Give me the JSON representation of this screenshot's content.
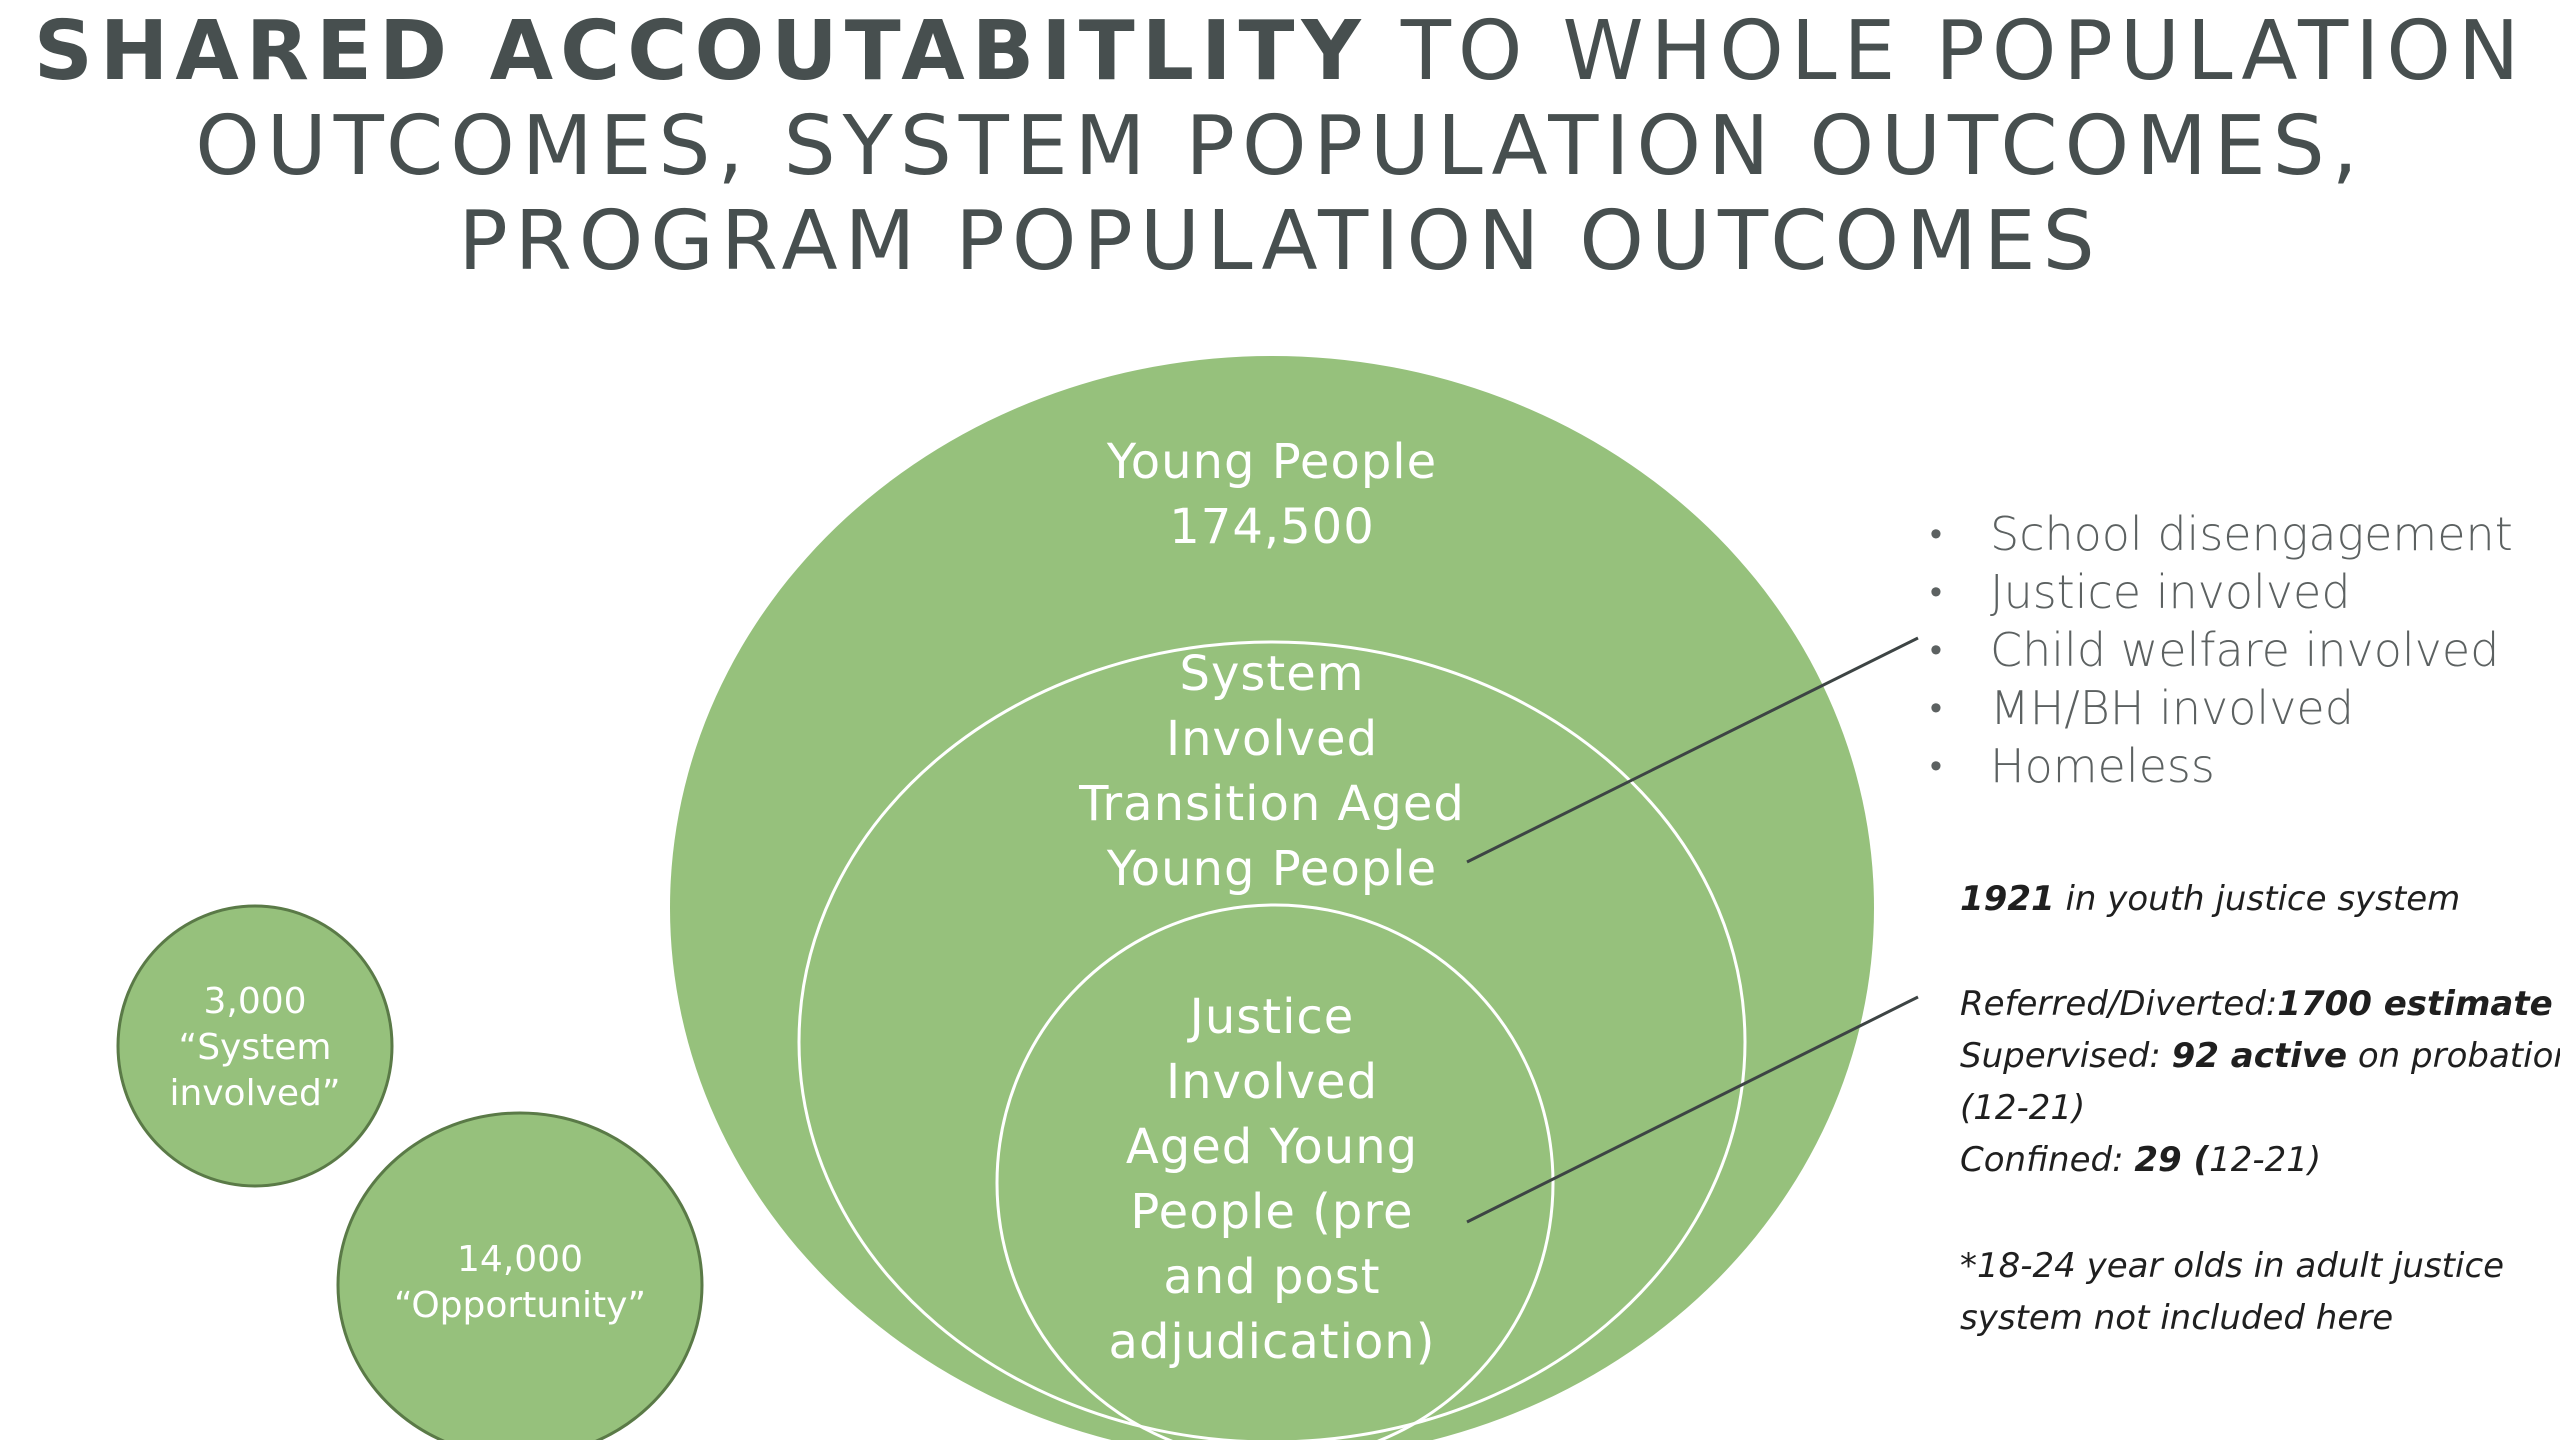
{
  "title": {
    "bold_part": "SHARED ACCOUTABITLITY",
    "rest_line1": " TO WHOLE POPULATION",
    "line2": "OUTCOMES, SYSTEM POPULATION OUTCOMES,",
    "line3": "PROGRAM POPULATION OUTCOMES"
  },
  "colors": {
    "circle_fill": "#96c17c",
    "circle_stroke": "#5a7a47",
    "inner_ring": "#ffffff",
    "title": "#474f4f",
    "bullet_text": "#5c6161",
    "note_text": "#1f1f1f",
    "connector": "#3d4444"
  },
  "outer_circle": {
    "line1": "Young People",
    "line2": "174,500"
  },
  "middle_circle": {
    "line1": "System",
    "line2": "Involved",
    "line3": "Transition Aged",
    "line4": "Young People"
  },
  "inner_circle": {
    "line1": "Justice",
    "line2": "Involved",
    "line3": "Aged Young",
    "line4": "People  (pre",
    "line5": "and post",
    "line6": "adjudication)"
  },
  "side_circle_system": {
    "line1": "3,000",
    "line2": "“System",
    "line3": "involved”"
  },
  "side_circle_opportunity": {
    "line1": "14,000",
    "line2": "“Opportunity”"
  },
  "bullets": [
    "School disengagement",
    "Justice involved",
    "Child welfare involved",
    "MH/BH involved",
    "Homeless"
  ],
  "notes": {
    "youth_count": "1921",
    "youth_text": " in youth justice system",
    "referred_label": "Referred/Diverted:",
    "referred_value": "1700 estimate",
    "supervised_label": "Supervised: ",
    "supervised_value": "92 active",
    "supervised_rest": " on probation",
    "supervised_period": "(12-21)",
    "confined_label": "Confined: ",
    "confined_value": "29 (",
    "confined_period": "12-21)",
    "adult_line1": "*18-24 year olds in adult justice",
    "adult_line2": "system not included here"
  }
}
